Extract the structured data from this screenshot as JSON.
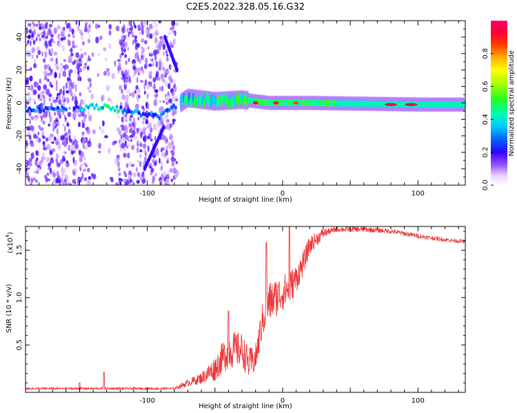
{
  "title": "C2E5.2022.328.05.16.G32",
  "chart_data": [
    {
      "type": "heatmap",
      "name": "spectrogram",
      "xlabel": "Height of straight line (km)",
      "ylabel": "Frequency (Hz)",
      "xlim": [
        -190,
        135
      ],
      "ylim": [
        -50,
        50
      ],
      "xticks": [
        -100,
        0,
        100
      ],
      "xtick_labels": [
        "-100",
        "0",
        "100"
      ],
      "yticks": [
        -40,
        -20,
        0,
        20,
        40
      ],
      "ytick_labels": [
        "-40",
        "-20",
        "0",
        "20",
        "40"
      ],
      "colorbar": {
        "label": "Normalized spectral amplitude",
        "range": [
          0,
          1
        ],
        "ticks": [
          0,
          0.2,
          0.4,
          0.6,
          0.8
        ],
        "tick_labels": [
          "0.0",
          "0.2",
          "0.4",
          "0.6",
          "0.8"
        ]
      },
      "ridge": [
        {
          "x": -190,
          "f": -3.5
        },
        {
          "x": -150,
          "f": -3
        },
        {
          "x": -130,
          "f": -2
        },
        {
          "x": -110,
          "f": -6
        },
        {
          "x": -90,
          "f": -8
        },
        {
          "x": -70,
          "f": 3
        },
        {
          "x": -50,
          "f": 1
        },
        {
          "x": -30,
          "f": 2
        },
        {
          "x": -10,
          "f": 0
        },
        {
          "x": 20,
          "f": 0
        },
        {
          "x": 60,
          "f": -0.5
        },
        {
          "x": 100,
          "f": -1
        },
        {
          "x": 135,
          "f": -1
        }
      ],
      "ridge_peaks": [
        {
          "x": -20,
          "f": 0,
          "amp": 0.95
        },
        {
          "x": -5,
          "f": 0,
          "amp": 0.98
        },
        {
          "x": 10,
          "f": 0,
          "amp": 0.85
        },
        {
          "x": 80,
          "f": -1,
          "amp": 0.95
        },
        {
          "x": 95,
          "f": -1,
          "amp": 0.95
        }
      ],
      "noise_region": {
        "x_from": -190,
        "x_to": -78,
        "amp": 0.1
      },
      "streaks": [
        {
          "x1": -87,
          "f1": 40,
          "x2": -78,
          "f2": 20
        },
        {
          "x1": -102,
          "f1": -40,
          "x2": -88,
          "f2": -15
        }
      ]
    },
    {
      "type": "line",
      "name": "snr",
      "xlabel": "Height of straight line (km)",
      "ylabel": "SNR (10 * v/v)",
      "scale_label": "(x10",
      "scale_exponent": "4",
      "xlim": [
        -190,
        135
      ],
      "ylim": [
        0,
        1.75
      ],
      "xticks": [
        -100,
        0,
        100
      ],
      "xtick_labels": [
        "-100",
        "0",
        "100"
      ],
      "yticks": [
        0.5,
        1.0,
        1.5
      ],
      "ytick_labels": [
        "0.5",
        "1.0",
        "1.5"
      ],
      "color": "#ee3333",
      "envelope": [
        {
          "x": -190,
          "y": 0.04
        },
        {
          "x": -80,
          "y": 0.04
        },
        {
          "x": -70,
          "y": 0.1
        },
        {
          "x": -60,
          "y": 0.15
        },
        {
          "x": -50,
          "y": 0.25
        },
        {
          "x": -40,
          "y": 0.45
        },
        {
          "x": -30,
          "y": 0.45
        },
        {
          "x": -25,
          "y": 0.3
        },
        {
          "x": -20,
          "y": 0.35
        },
        {
          "x": -15,
          "y": 0.75
        },
        {
          "x": -10,
          "y": 0.95
        },
        {
          "x": -5,
          "y": 1.0
        },
        {
          "x": 0,
          "y": 1.05
        },
        {
          "x": 5,
          "y": 1.1
        },
        {
          "x": 10,
          "y": 1.2
        },
        {
          "x": 15,
          "y": 1.35
        },
        {
          "x": 20,
          "y": 1.55
        },
        {
          "x": 30,
          "y": 1.68
        },
        {
          "x": 40,
          "y": 1.72
        },
        {
          "x": 60,
          "y": 1.72
        },
        {
          "x": 80,
          "y": 1.7
        },
        {
          "x": 100,
          "y": 1.65
        },
        {
          "x": 120,
          "y": 1.61
        },
        {
          "x": 135,
          "y": 1.59
        }
      ],
      "noise": [
        {
          "x": -190,
          "a": 0.012
        },
        {
          "x": -80,
          "a": 0.014
        },
        {
          "x": -60,
          "a": 0.06
        },
        {
          "x": -40,
          "a": 0.2
        },
        {
          "x": -30,
          "a": 0.18
        },
        {
          "x": -20,
          "a": 0.15
        },
        {
          "x": -10,
          "a": 0.22
        },
        {
          "x": 5,
          "a": 0.18
        },
        {
          "x": 20,
          "a": 0.1
        },
        {
          "x": 35,
          "a": 0.03
        },
        {
          "x": 135,
          "a": 0.02
        }
      ],
      "spikes": [
        {
          "x": -150,
          "y": 0.1
        },
        {
          "x": -132,
          "y": 0.21
        },
        {
          "x": -40,
          "y": 0.86
        },
        {
          "x": -12,
          "y": 1.58
        },
        {
          "x": 5,
          "y": 1.75
        }
      ]
    }
  ]
}
